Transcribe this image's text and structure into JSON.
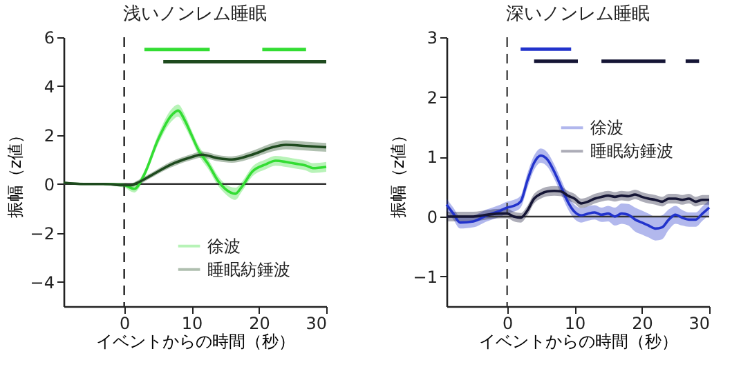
{
  "chart_data": [
    {
      "type": "line",
      "title": "浅いノンレム睡眠",
      "xlabel": "イベントからの時間（秒）",
      "ylabel": "振幅（z値）",
      "xlim": [
        -9,
        30
      ],
      "ylim": [
        -5,
        6
      ],
      "xticks": [
        0,
        10,
        20,
        30
      ],
      "yticks": [
        -4,
        -2,
        0,
        2,
        4,
        6
      ],
      "grid": false,
      "legend": "bottom right",
      "ref_lines": [
        {
          "axis": "x",
          "value": 0,
          "color": "#333333",
          "line_style": "dashed"
        },
        {
          "axis": "y",
          "value": 0,
          "color": "#333333",
          "line_style": "solid"
        }
      ],
      "series": [
        {
          "name": "徐波",
          "color": "#33dd33",
          "x": [
            -9,
            -6,
            -3,
            0,
            1.5,
            3,
            5,
            7,
            8,
            9,
            10,
            11,
            12.5,
            14,
            15,
            16.5,
            17.5,
            19,
            21,
            22.5,
            24,
            25,
            27,
            28,
            30
          ],
          "values": [
            null,
            null,
            0,
            -0.05,
            -0.2,
            0.4,
            1.8,
            2.8,
            3.0,
            2.6,
            2.0,
            1.4,
            0.8,
            0.1,
            -0.2,
            -0.4,
            -0.1,
            0.5,
            0.8,
            0.95,
            0.9,
            0.85,
            0.75,
            0.65,
            0.7
          ],
          "lower": [
            0,
            -0.05,
            -0.05,
            -0.15,
            -0.35,
            0.25,
            1.6,
            2.55,
            2.75,
            2.35,
            1.8,
            1.2,
            0.6,
            -0.1,
            -0.4,
            -0.65,
            -0.3,
            0.3,
            0.6,
            0.75,
            0.7,
            0.65,
            0.55,
            0.45,
            0.5
          ],
          "upper": [
            0.1,
            0.05,
            0.05,
            0.05,
            -0.05,
            0.55,
            2.0,
            3.05,
            3.25,
            2.85,
            2.2,
            1.6,
            1.0,
            0.3,
            0.0,
            -0.15,
            0.1,
            0.7,
            1.0,
            1.15,
            1.1,
            1.05,
            0.95,
            0.85,
            0.9
          ]
        },
        {
          "name": "睡眠紡錘波",
          "color": "#1e4a1e",
          "x": [
            -9,
            -6,
            -3,
            0,
            1,
            2,
            4,
            7,
            10,
            11.5,
            14,
            16,
            19,
            22,
            24,
            27,
            30
          ],
          "values": [
            0.05,
            0,
            0,
            -0.05,
            -0.05,
            0.05,
            0.35,
            0.8,
            1.1,
            1.2,
            1.05,
            1.0,
            1.2,
            1.5,
            1.6,
            1.55,
            1.5
          ],
          "lower": [
            0,
            -0.05,
            -0.05,
            -0.1,
            -0.12,
            -0.05,
            0.25,
            0.68,
            0.98,
            1.07,
            0.92,
            0.87,
            1.05,
            1.33,
            1.42,
            1.37,
            1.32
          ],
          "upper": [
            0.1,
            0.05,
            0.05,
            0,
            0.02,
            0.15,
            0.45,
            0.92,
            1.22,
            1.33,
            1.18,
            1.13,
            1.35,
            1.67,
            1.78,
            1.73,
            1.68
          ]
        },
        {
          "type": "line",
          "color": "#33dd33",
          "x": [
            3,
            12.7
          ],
          "values": [
            5.5,
            5.5
          ]
        },
        {
          "type": "line",
          "color": "#33dd33",
          "x": [
            20.5,
            27
          ],
          "values": [
            5.5,
            5.5
          ]
        },
        {
          "type": "line",
          "color": "#1e4a1e",
          "x": [
            5.8,
            30
          ],
          "values": [
            5,
            5
          ]
        }
      ]
    },
    {
      "type": "line",
      "title": "深いノンレム睡眠",
      "xlabel": "イベントからの時間（秒）",
      "ylabel": "振幅（z値）",
      "xlim": [
        -9,
        30
      ],
      "ylim": [
        -1.5,
        3
      ],
      "xticks": [
        0,
        10,
        20,
        30
      ],
      "yticks": [
        -1,
        0,
        1,
        2,
        3
      ],
      "grid": false,
      "legend": "top right",
      "ref_lines": [
        {
          "axis": "x",
          "value": 0,
          "color": "#555555",
          "line_style": "dashed"
        },
        {
          "axis": "y",
          "value": 0,
          "color": "#333333",
          "line_style": "solid"
        }
      ],
      "series": [
        {
          "name": "徐波",
          "color": "#2233cc",
          "x": [
            -9,
            -8,
            -7,
            -5,
            -3,
            -1,
            0,
            1,
            2,
            3,
            4,
            5,
            6,
            7,
            8,
            9,
            10,
            11,
            12,
            13,
            14,
            15,
            16,
            17,
            18,
            19,
            20,
            21,
            22,
            23,
            24,
            25,
            26,
            27,
            28,
            29,
            30
          ],
          "values": [
            0.2,
            0.05,
            -0.1,
            -0.08,
            0.02,
            0.1,
            0.15,
            0.18,
            0.25,
            0.6,
            0.9,
            1.02,
            0.95,
            0.75,
            0.5,
            0.25,
            0.08,
            0.02,
            0.05,
            0.07,
            0.03,
            0.05,
            0.0,
            0.05,
            0.03,
            -0.05,
            -0.1,
            -0.15,
            -0.2,
            -0.18,
            -0.05,
            0.03,
            -0.02,
            -0.05,
            -0.05,
            0.05,
            0.15
          ],
          "lower": [
            0.1,
            -0.05,
            -0.2,
            -0.18,
            -0.08,
            0.0,
            0.05,
            0.08,
            0.15,
            0.48,
            0.78,
            0.9,
            0.83,
            0.63,
            0.38,
            0.13,
            -0.04,
            -0.1,
            -0.07,
            -0.05,
            -0.09,
            -0.08,
            -0.15,
            -0.12,
            -0.15,
            -0.25,
            -0.3,
            -0.35,
            -0.4,
            -0.38,
            -0.22,
            -0.12,
            -0.15,
            -0.17,
            -0.17,
            -0.07,
            0.03
          ],
          "upper": [
            0.3,
            0.15,
            0.0,
            0.02,
            0.12,
            0.2,
            0.25,
            0.28,
            0.35,
            0.72,
            1.02,
            1.14,
            1.07,
            0.87,
            0.62,
            0.37,
            0.2,
            0.14,
            0.17,
            0.19,
            0.15,
            0.18,
            0.15,
            0.22,
            0.21,
            0.15,
            0.1,
            0.05,
            0.0,
            0.02,
            0.12,
            0.18,
            0.11,
            0.07,
            0.07,
            0.17,
            0.27
          ]
        },
        {
          "name": "睡眠紡錘波",
          "color": "#151535",
          "x": [
            -9,
            -5,
            -3,
            -1,
            0,
            1,
            2,
            3,
            4,
            5,
            6,
            7,
            8,
            9,
            10,
            11,
            12,
            13,
            14,
            15,
            16,
            17,
            18,
            19,
            20,
            21,
            22,
            23,
            24,
            25,
            26,
            27,
            28,
            29,
            30
          ],
          "values": [
            0.0,
            0.0,
            0.03,
            0.05,
            0.05,
            0.0,
            -0.02,
            0.1,
            0.3,
            0.38,
            0.42,
            0.43,
            0.42,
            0.35,
            0.3,
            0.22,
            0.25,
            0.3,
            0.33,
            0.35,
            0.33,
            0.35,
            0.34,
            0.37,
            0.33,
            0.3,
            0.28,
            0.25,
            0.3,
            0.3,
            0.28,
            0.3,
            0.25,
            0.28,
            0.28
          ],
          "lower": [
            -0.08,
            -0.08,
            -0.05,
            -0.03,
            -0.03,
            -0.08,
            -0.1,
            0.02,
            0.22,
            0.3,
            0.34,
            0.35,
            0.34,
            0.27,
            0.22,
            0.14,
            0.17,
            0.22,
            0.25,
            0.27,
            0.25,
            0.27,
            0.26,
            0.29,
            0.25,
            0.22,
            0.2,
            0.17,
            0.22,
            0.22,
            0.2,
            0.22,
            0.17,
            0.2,
            0.2
          ],
          "upper": [
            0.08,
            0.08,
            0.11,
            0.13,
            0.13,
            0.08,
            0.06,
            0.18,
            0.38,
            0.46,
            0.5,
            0.51,
            0.5,
            0.43,
            0.38,
            0.3,
            0.33,
            0.38,
            0.41,
            0.43,
            0.41,
            0.43,
            0.42,
            0.45,
            0.41,
            0.38,
            0.36,
            0.33,
            0.38,
            0.38,
            0.36,
            0.38,
            0.33,
            0.36,
            0.36
          ]
        },
        {
          "type": "line",
          "color": "#2233cc",
          "x": [
            2,
            9.5
          ],
          "values": [
            2.8,
            2.8
          ]
        },
        {
          "type": "line",
          "color": "#151535",
          "x": [
            4,
            10.5
          ],
          "values": [
            2.6,
            2.6
          ]
        },
        {
          "type": "line",
          "color": "#151535",
          "x": [
            14,
            23.5
          ],
          "values": [
            2.6,
            2.6
          ]
        },
        {
          "type": "line",
          "color": "#151535",
          "x": [
            26.5,
            28.5
          ],
          "values": [
            2.6,
            2.6
          ]
        }
      ]
    }
  ]
}
